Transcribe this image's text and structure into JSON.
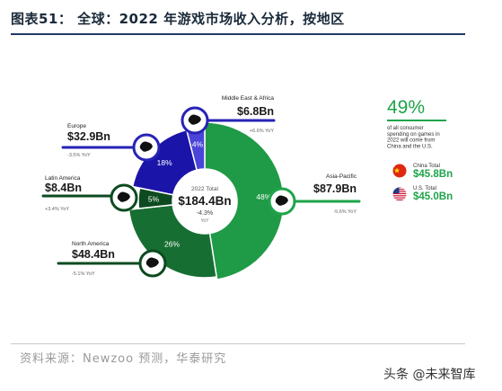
{
  "header": {
    "title": "图表51： 全球：2022 年游戏市场收入分析，按地区"
  },
  "footer": {
    "source": "资料来源：Newzoo 预测，华泰研究",
    "watermark": "头条 @未来智库"
  },
  "colors": {
    "green": "#1f9a46",
    "dark_green": "#176e32",
    "darker_green": "#0d4a20",
    "blue": "#1a14a8",
    "light_blue": "#4a45d8",
    "callout_blue": "#2723b5",
    "accent_green": "#1ea44a"
  },
  "chart_data": {
    "type": "pie",
    "center": {
      "label": "2022 Total",
      "value": "$184.4Bn",
      "change": "-4.3%",
      "change_unit": "YoY"
    },
    "segments": [
      {
        "region": "Asia-Pacific",
        "share_pct": 48,
        "share_label": "48%",
        "value": "$87.9Bn",
        "yoy": "-5.6% YoY",
        "icon": "asia-pacific-map-icon"
      },
      {
        "region": "North America",
        "share_pct": 26,
        "share_label": "26%",
        "value": "$48.4Bn",
        "yoy": "-5.1% YoY",
        "icon": "north-america-map-icon"
      },
      {
        "region": "Latin America",
        "share_pct": 5,
        "share_label": "5%",
        "value": "$8.4Bn",
        "yoy": "+3.4% YoY",
        "icon": "latin-america-map-icon"
      },
      {
        "region": "Europe",
        "share_pct": 18,
        "share_label": "18%",
        "value": "$32.9Bn",
        "yoy": "-3.5% YoY",
        "icon": "europe-map-icon"
      },
      {
        "region": "Middle East & Africa",
        "share_pct": 4,
        "share_label": "4%",
        "value": "$6.8Bn",
        "yoy": "+6.6% YoY",
        "icon": "middle-east-africa-map-icon"
      }
    ],
    "side_panel": {
      "headline": "49%",
      "description": [
        "of all consumer",
        "spending on games in",
        "2022 will come from",
        "China and the U.S."
      ],
      "items": [
        {
          "label": "China Total",
          "value": "$45.8Bn",
          "icon": "china-flag-icon"
        },
        {
          "label": "U.S. Total",
          "value": "$45.0Bn",
          "icon": "us-flag-icon"
        }
      ]
    }
  }
}
